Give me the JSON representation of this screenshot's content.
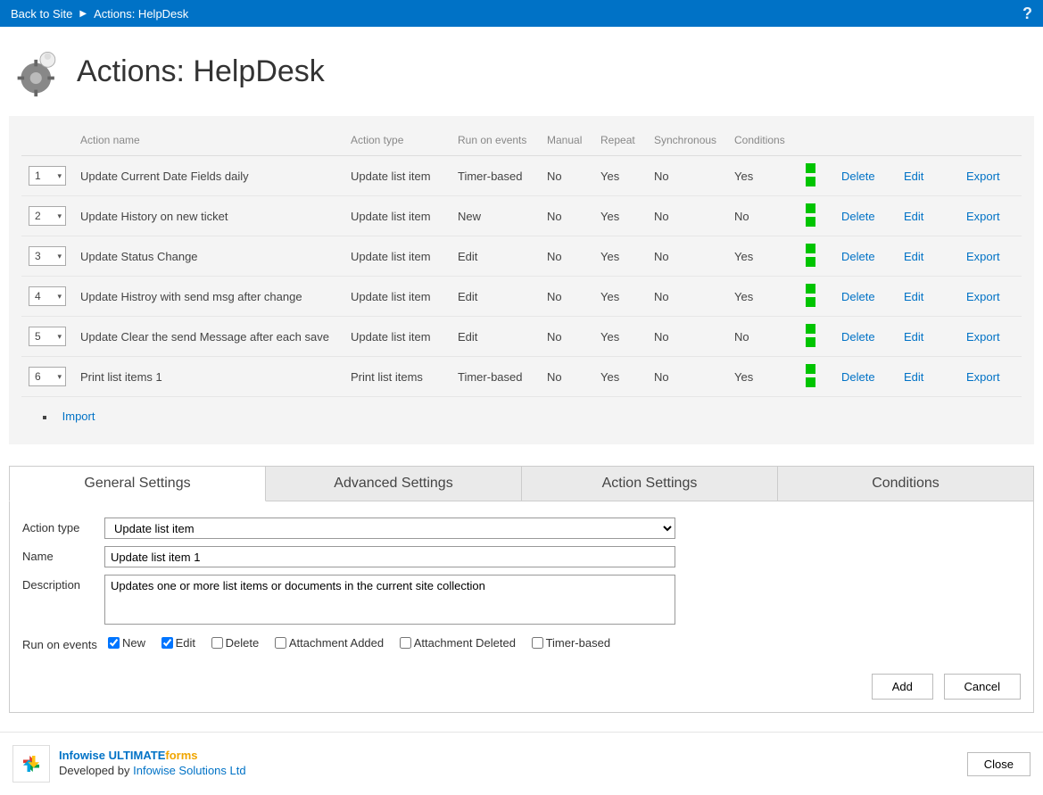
{
  "topbar": {
    "back": "Back to Site",
    "crumb": "Actions: HelpDesk"
  },
  "page_title": "Actions: HelpDesk",
  "table": {
    "headers": {
      "name": "Action name",
      "type": "Action type",
      "run": "Run on events",
      "manual": "Manual",
      "repeat": "Repeat",
      "sync": "Synchronous",
      "cond": "Conditions"
    },
    "rows": [
      {
        "order": "1",
        "name": "Update Current Date Fields daily",
        "type": "Update list item",
        "run": "Timer-based",
        "manual": "No",
        "repeat": "Yes",
        "sync": "No",
        "cond": "Yes"
      },
      {
        "order": "2",
        "name": "Update History on new ticket",
        "type": "Update list item",
        "run": "New",
        "manual": "No",
        "repeat": "Yes",
        "sync": "No",
        "cond": "No"
      },
      {
        "order": "3",
        "name": "Update Status Change",
        "type": "Update list item",
        "run": "Edit",
        "manual": "No",
        "repeat": "Yes",
        "sync": "No",
        "cond": "Yes"
      },
      {
        "order": "4",
        "name": "Update Histroy with send msg after change",
        "type": "Update list item",
        "run": "Edit",
        "manual": "No",
        "repeat": "Yes",
        "sync": "No",
        "cond": "Yes"
      },
      {
        "order": "5",
        "name": "Update Clear the send Message after each save",
        "type": "Update list item",
        "run": "Edit",
        "manual": "No",
        "repeat": "Yes",
        "sync": "No",
        "cond": "No"
      },
      {
        "order": "6",
        "name": "Print list items 1",
        "type": "Print list items",
        "run": "Timer-based",
        "manual": "No",
        "repeat": "Yes",
        "sync": "No",
        "cond": "Yes"
      }
    ],
    "links": {
      "delete": "Delete",
      "edit": "Edit",
      "export": "Export"
    },
    "import": "Import"
  },
  "tabs": {
    "general": "General Settings",
    "advanced": "Advanced Settings",
    "action": "Action Settings",
    "conditions": "Conditions"
  },
  "form": {
    "labels": {
      "type": "Action type",
      "name": "Name",
      "desc": "Description",
      "run": "Run on events"
    },
    "type_value": "Update list item",
    "name_value": "Update list item 1",
    "desc_value": "Updates one or more list items or documents in the current site collection",
    "events": {
      "new": "New",
      "edit": "Edit",
      "delete": "Delete",
      "att_add": "Attachment Added",
      "att_del": "Attachment Deleted",
      "timer": "Timer-based"
    },
    "buttons": {
      "add": "Add",
      "cancel": "Cancel"
    }
  },
  "footer": {
    "brand1": "Infowise ",
    "brand2": "ULTIMATE",
    "brand3": "forms",
    "by": "Developed by ",
    "company": "Infowise Solutions Ltd",
    "close": "Close"
  },
  "colors": {
    "topbar": "#0072c6",
    "link": "#0072c6",
    "status": "#00c400"
  }
}
